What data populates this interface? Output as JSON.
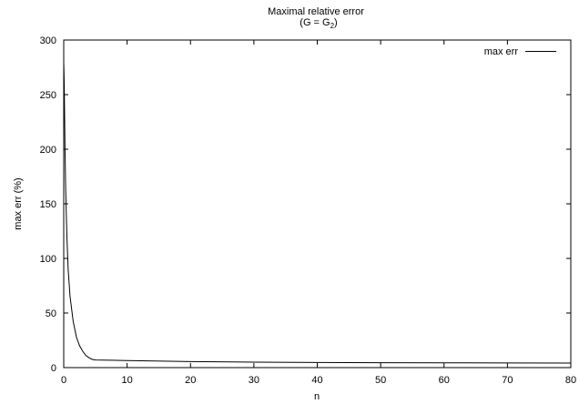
{
  "chart_data": {
    "type": "line",
    "title": "Maximal relative error",
    "subtitle": {
      "prefix": "(G = G",
      "subscript": "2",
      "suffix": ")"
    },
    "xlabel": "n",
    "ylabel": "max err (%)",
    "xlim": [
      0,
      80
    ],
    "ylim": [
      0,
      300
    ],
    "xticks": [
      0,
      10,
      20,
      30,
      40,
      50,
      60,
      70,
      80
    ],
    "yticks": [
      0,
      50,
      100,
      150,
      200,
      250,
      300
    ],
    "grid": false,
    "legend_position": "top-right",
    "series": [
      {
        "name": "max err",
        "color": "#000000",
        "x": [
          0,
          0.05,
          0.1,
          0.2,
          0.3,
          0.5,
          0.7,
          1,
          1.5,
          2,
          2.5,
          3,
          3.5,
          4,
          4.5,
          5,
          10,
          20,
          30,
          40,
          50,
          60,
          70,
          80
        ],
        "y": [
          280,
          268,
          250,
          200,
          165,
          120,
          90,
          65,
          42,
          28,
          20,
          15,
          11,
          9,
          7.5,
          7,
          6.5,
          5.5,
          5,
          4.7,
          4.5,
          4.4,
          4.3,
          4.2
        ]
      }
    ]
  }
}
